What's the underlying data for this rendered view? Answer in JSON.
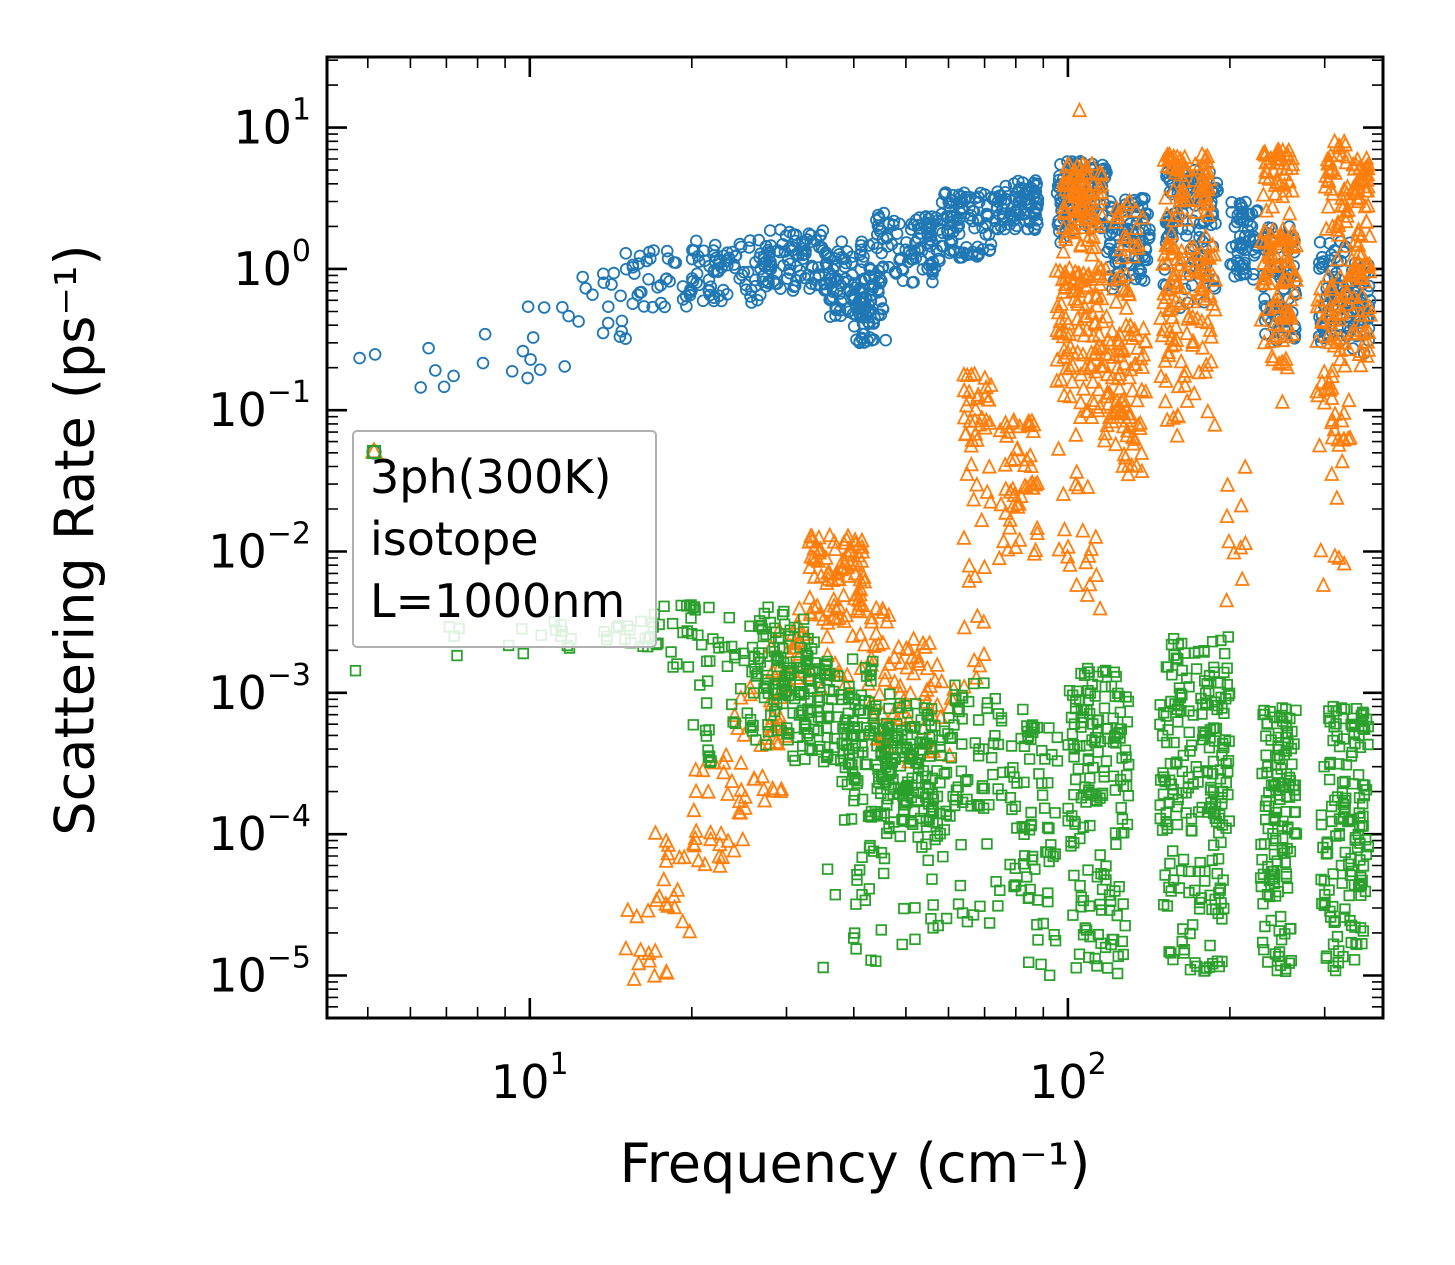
{
  "chart_data": {
    "type": "scatter",
    "title": "",
    "xlabel": "Frequency (cm⁻¹)",
    "ylabel": "Scattering Rate (ps⁻¹)",
    "xscale": "log",
    "yscale": "log",
    "xlim": [
      4.2,
      385
    ],
    "ylim": [
      5e-06,
      31.6
    ],
    "grid": false,
    "tick_base": "10",
    "x_major_tick_exponents": [
      1,
      2
    ],
    "y_major_tick_exponents": [
      -5,
      -4,
      -3,
      -2,
      -1,
      0,
      1
    ],
    "legend_position": "upper-left-inside",
    "cluster_format": [
      "freq_min_cm-1",
      "freq_max_cm-1",
      "rate_min_ps-1",
      "rate_max_ps-1",
      "count",
      "density_bias"
    ],
    "series": [
      {
        "name": "3ph(300K)",
        "marker": "circle",
        "color": "#1f77b4",
        "clusters": [
          [
            4.8,
            5.2,
            0.2,
            0.25,
            2
          ],
          [
            6.2,
            8.2,
            0.13,
            0.33,
            6
          ],
          [
            8.2,
            12,
            0.15,
            0.55,
            12
          ],
          [
            12,
            16,
            0.3,
            0.95,
            18
          ],
          [
            15,
            20,
            0.5,
            1.4,
            35
          ],
          [
            20,
            27,
            0.55,
            1.6,
            70
          ],
          [
            27,
            36,
            0.7,
            1.9,
            100
          ],
          [
            36,
            44,
            0.45,
            1.6,
            90
          ],
          [
            40,
            46,
            0.3,
            0.9,
            45
          ],
          [
            44,
            58,
            0.8,
            2.5,
            100
          ],
          [
            58,
            72,
            1.2,
            3.5,
            90
          ],
          [
            72,
            88,
            1.8,
            4.3,
            85
          ],
          [
            95,
            118,
            1.2,
            5.8,
            110,
            "top"
          ],
          [
            118,
            142,
            0.7,
            3.2,
            95
          ],
          [
            150,
            190,
            0.4,
            5.0,
            120,
            "top"
          ],
          [
            200,
            225,
            0.8,
            3.0,
            60
          ],
          [
            230,
            265,
            0.3,
            2.0,
            80
          ],
          [
            290,
            335,
            0.3,
            1.6,
            70
          ],
          [
            335,
            365,
            0.25,
            1.1,
            45
          ]
        ]
      },
      {
        "name": "isotope",
        "marker": "triangle",
        "color": "#ff7f0e",
        "clusters": [
          [
            15,
            18,
            8e-06,
            4e-05,
            15
          ],
          [
            17,
            21,
            2e-05,
            0.00012,
            20
          ],
          [
            20,
            25,
            5e-05,
            0.0004,
            25
          ],
          [
            24,
            30,
            0.00015,
            0.0012,
            30
          ],
          [
            28,
            34,
            0.0005,
            0.004,
            35
          ],
          [
            33,
            42,
            0.001,
            0.013,
            100,
            "top"
          ],
          [
            42,
            52,
            0.0004,
            0.004,
            45
          ],
          [
            50,
            62,
            0.0003,
            0.0025,
            30
          ],
          [
            64,
            72,
            0.008,
            0.18,
            40,
            "top"
          ],
          [
            64,
            72,
            0.001,
            0.008,
            12
          ],
          [
            74,
            88,
            0.003,
            0.09,
            55,
            "top"
          ],
          [
            95,
            118,
            0.04,
            1.0,
            110,
            "top"
          ],
          [
            98,
            116,
            0.8,
            5.5,
            95,
            "top"
          ],
          [
            104,
            107,
            12.5,
            13.5,
            1
          ],
          [
            95,
            115,
            0.003,
            0.04,
            20
          ],
          [
            118,
            140,
            0.03,
            0.4,
            85
          ],
          [
            120,
            138,
            0.5,
            3.0,
            30
          ],
          [
            148,
            188,
            0.05,
            1.5,
            110,
            "top"
          ],
          [
            150,
            185,
            1.5,
            6.5,
            70,
            "top"
          ],
          [
            196,
            214,
            0.004,
            0.04,
            10
          ],
          [
            228,
            266,
            0.08,
            2.0,
            85,
            "top"
          ],
          [
            230,
            262,
            2.0,
            7.0,
            45,
            "top"
          ],
          [
            290,
            335,
            0.05,
            0.9,
            70
          ],
          [
            300,
            332,
            1.0,
            8.0,
            45,
            "top"
          ],
          [
            292,
            330,
            0.005,
            0.05,
            8
          ],
          [
            336,
            365,
            0.2,
            2.0,
            50
          ],
          [
            338,
            362,
            2.0,
            6.0,
            35,
            "top"
          ]
        ]
      },
      {
        "name": "L=1000nm",
        "marker": "square",
        "color": "#2ca02c",
        "clusters": [
          [
            4.6,
            5.0,
            0.0013,
            0.0015,
            1
          ],
          [
            6,
            12,
            0.0018,
            0.0032,
            12
          ],
          [
            11,
            18,
            0.002,
            0.0036,
            18
          ],
          [
            16,
            24,
            0.0022,
            0.0042,
            25
          ],
          [
            18,
            26,
            0.0014,
            0.0024,
            16
          ],
          [
            19,
            28,
            0.0003,
            0.0013,
            20
          ],
          [
            24,
            34,
            0.0005,
            0.003,
            70
          ],
          [
            26,
            33,
            0.0015,
            0.0045,
            30
          ],
          [
            30,
            44,
            0.0003,
            0.0018,
            110
          ],
          [
            38,
            56,
            0.00012,
            0.001,
            130
          ],
          [
            45,
            62,
            8e-05,
            0.0006,
            90
          ],
          [
            35,
            60,
            1e-05,
            0.0001,
            35
          ],
          [
            60,
            76,
            0.00015,
            0.0012,
            50
          ],
          [
            62,
            75,
            2e-05,
            0.00015,
            12
          ],
          [
            78,
            96,
            3e-05,
            0.0008,
            70
          ],
          [
            80,
            95,
            1e-05,
            3e-05,
            8
          ],
          [
            100,
            130,
            8e-05,
            0.0015,
            120
          ],
          [
            102,
            128,
            1e-05,
            8e-05,
            45
          ],
          [
            148,
            200,
            0.0001,
            0.0025,
            160
          ],
          [
            150,
            195,
            1e-05,
            0.0001,
            60
          ],
          [
            228,
            266,
            4e-05,
            0.0008,
            110
          ],
          [
            230,
            262,
            1e-05,
            4e-05,
            25
          ],
          [
            295,
            362,
            3e-05,
            0.0008,
            120
          ],
          [
            300,
            355,
            1e-05,
            3e-05,
            25
          ]
        ]
      }
    ]
  }
}
